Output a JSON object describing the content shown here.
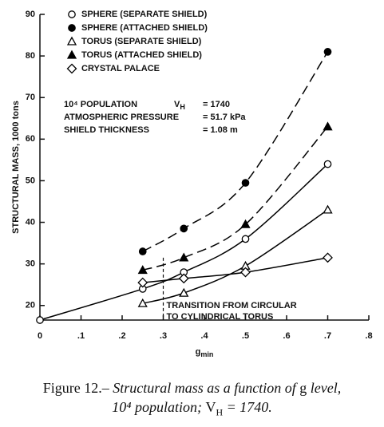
{
  "chart_data": {
    "type": "line",
    "ylabel": "STRUCTURAL MASS, 1000 tons",
    "xlabel": {
      "text": "g",
      "subscript": "min"
    },
    "xlim": [
      0,
      0.8
    ],
    "ylim": [
      16.5,
      90
    ],
    "xticks": [
      0,
      {
        "value": 0.1,
        "label": ".1"
      },
      {
        "value": 0.2,
        "label": ".2"
      },
      {
        "value": 0.3,
        "label": ".3"
      },
      {
        "value": 0.4,
        "label": ".4"
      },
      {
        "value": 0.5,
        "label": ".5"
      },
      {
        "value": 0.6,
        "label": ".6"
      },
      {
        "value": 0.7,
        "label": ".7"
      },
      {
        "value": 0.8,
        "label": ".8"
      }
    ],
    "yticks": [
      20,
      30,
      40,
      50,
      60,
      70,
      80,
      90
    ],
    "legend": "upper left",
    "series": [
      {
        "name": "SPHERE (SEPARATE SHIELD)",
        "color": "#000000",
        "marker": "circle",
        "filled": false,
        "line": "solid",
        "x": [
          0,
          0.25,
          0.35,
          0.5,
          0.7
        ],
        "values": [
          16.5,
          24,
          28,
          36,
          54
        ]
      },
      {
        "name": "SPHERE (ATTACHED SHIELD)",
        "color": "#000000",
        "marker": "circle",
        "filled": true,
        "line": "dashed",
        "x": [
          0.25,
          0.35,
          0.5,
          0.7
        ],
        "values": [
          33,
          38.5,
          49.5,
          81
        ]
      },
      {
        "name": "TORUS (SEPARATE SHIELD)",
        "color": "#000000",
        "marker": "triangle",
        "filled": false,
        "line": "solid",
        "x": [
          0.25,
          0.35,
          0.5,
          0.7
        ],
        "values": [
          20.5,
          23,
          29.5,
          43
        ]
      },
      {
        "name": "TORUS (ATTACHED SHIELD)",
        "color": "#000000",
        "marker": "triangle",
        "filled": true,
        "line": "dashed",
        "x": [
          0.25,
          0.35,
          0.5,
          0.7
        ],
        "values": [
          28.5,
          31.5,
          39.5,
          63
        ]
      },
      {
        "name": "CRYSTAL PALACE",
        "color": "#000000",
        "marker": "diamond",
        "filled": false,
        "line": "solid",
        "x": [
          0.25,
          0.35,
          0.5,
          0.7
        ],
        "values": [
          25.5,
          26.5,
          28,
          31.5
        ]
      }
    ],
    "parameters": [
      {
        "name": "10⁴ POPULATION",
        "symbol": "V",
        "subscript": "H",
        "value": "= 1740"
      },
      {
        "name": "ATMOSPHERIC PRESSURE",
        "value": "= 51.7 kPa"
      },
      {
        "name": "SHIELD THICKNESS",
        "value": "= 1.08 m"
      }
    ],
    "transition": {
      "x": 0.3,
      "y": 31.5,
      "lines": [
        "TRANSITION FROM CIRCULAR",
        "TO CYLINDRICAL TORUS"
      ]
    },
    "caption": [
      [
        {
          "text": "Figure 12.– ",
          "style": "roman"
        },
        {
          "text": "Structural mass as a function of ",
          "style": "italic"
        },
        {
          "text": "g",
          "style": "roman"
        },
        {
          "text": " level,",
          "style": "italic"
        }
      ],
      [
        {
          "text": "10⁴ population; ",
          "style": "italic"
        },
        {
          "text": "V",
          "style": "roman"
        },
        {
          "text": "H",
          "style": "sub"
        },
        {
          "text": " = 1740.",
          "style": "italic"
        }
      ]
    ]
  }
}
